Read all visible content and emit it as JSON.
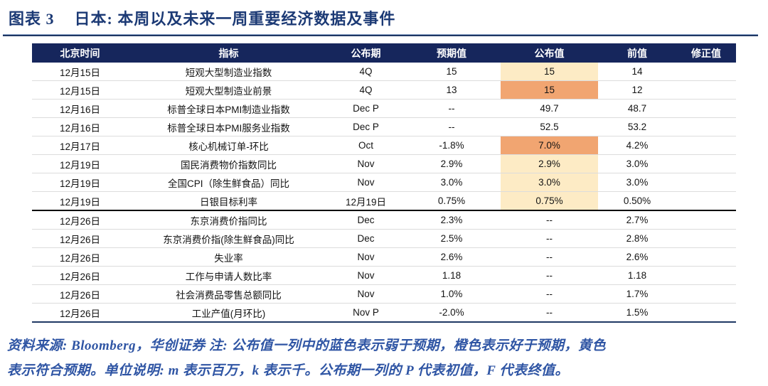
{
  "figure": {
    "label": "图表 3",
    "title": "日本: 本周以及未来一周重要经济数据及事件"
  },
  "table": {
    "headers": [
      "北京时间",
      "指标",
      "公布期",
      "预期值",
      "公布值",
      "前值",
      "修正值"
    ],
    "rows": [
      {
        "time": "12月15日",
        "indicator": "短观大型制造业指数",
        "period": "4Q",
        "expected": "15",
        "actual": "15",
        "previous": "14",
        "revised": "",
        "highlight": "yellow",
        "section_end": false
      },
      {
        "time": "12月15日",
        "indicator": "短观大型制造业前景",
        "period": "4Q",
        "expected": "13",
        "actual": "15",
        "previous": "12",
        "revised": "",
        "highlight": "orange",
        "section_end": false
      },
      {
        "time": "12月16日",
        "indicator": "标普全球日本PMI制造业指数",
        "period": "Dec P",
        "expected": "--",
        "actual": "49.7",
        "previous": "48.7",
        "revised": "",
        "highlight": null,
        "section_end": false
      },
      {
        "time": "12月16日",
        "indicator": "标普全球日本PMI服务业指数",
        "period": "Dec P",
        "expected": "--",
        "actual": "52.5",
        "previous": "53.2",
        "revised": "",
        "highlight": null,
        "section_end": false
      },
      {
        "time": "12月17日",
        "indicator": "核心机械订单-环比",
        "period": "Oct",
        "expected": "-1.8%",
        "actual": "7.0%",
        "previous": "4.2%",
        "revised": "",
        "highlight": "orange",
        "section_end": false
      },
      {
        "time": "12月19日",
        "indicator": "国民消费物价指数同比",
        "period": "Nov",
        "expected": "2.9%",
        "actual": "2.9%",
        "previous": "3.0%",
        "revised": "",
        "highlight": "yellow",
        "section_end": false
      },
      {
        "time": "12月19日",
        "indicator": "全国CPI（除生鲜食品）同比",
        "period": "Nov",
        "expected": "3.0%",
        "actual": "3.0%",
        "previous": "3.0%",
        "revised": "",
        "highlight": "yellow",
        "section_end": false
      },
      {
        "time": "12月19日",
        "indicator": "日银目标利率",
        "period": "12月19日",
        "expected": "0.75%",
        "actual": "0.75%",
        "previous": "0.50%",
        "revised": "",
        "highlight": "yellow",
        "section_end": true
      },
      {
        "time": "12月26日",
        "indicator": "东京消费价指同比",
        "period": "Dec",
        "expected": "2.3%",
        "actual": "--",
        "previous": "2.7%",
        "revised": "",
        "highlight": null,
        "section_end": false
      },
      {
        "time": "12月26日",
        "indicator": "东京消费价指(除生鲜食品)同比",
        "period": "Dec",
        "expected": "2.5%",
        "actual": "--",
        "previous": "2.8%",
        "revised": "",
        "highlight": null,
        "section_end": false
      },
      {
        "time": "12月26日",
        "indicator": "失业率",
        "period": "Nov",
        "expected": "2.6%",
        "actual": "--",
        "previous": "2.6%",
        "revised": "",
        "highlight": null,
        "section_end": false
      },
      {
        "time": "12月26日",
        "indicator": "工作与申请人数比率",
        "period": "Nov",
        "expected": "1.18",
        "actual": "--",
        "previous": "1.18",
        "revised": "",
        "highlight": null,
        "section_end": false
      },
      {
        "time": "12月26日",
        "indicator": "社会消费品零售总额同比",
        "period": "Nov",
        "expected": "1.0%",
        "actual": "--",
        "previous": "1.7%",
        "revised": "",
        "highlight": null,
        "section_end": false
      },
      {
        "time": "12月26日",
        "indicator": "工业产值(月环比)",
        "period": "Nov P",
        "expected": "-2.0%",
        "actual": "--",
        "previous": "1.5%",
        "revised": "",
        "highlight": null,
        "section_end": false
      }
    ]
  },
  "footer": {
    "line1": "资料来源: Bloomberg，华创证券  注: 公布值一列中的蓝色表示弱于预期，橙色表示好于预期，黄色",
    "line2": "表示符合预期。单位说明: m 表示百万，k 表示千。公布期一列的 P 代表初值，F 代表终值。"
  },
  "colors": {
    "header_bg": "#16265C",
    "title_text": "#1C3A75",
    "footer_text": "#2F55A4",
    "highlight_yellow": "#FDEBC5",
    "highlight_orange": "#F1A571",
    "section_divider": "#000000",
    "table_bottom_rule": "#1F3864"
  }
}
